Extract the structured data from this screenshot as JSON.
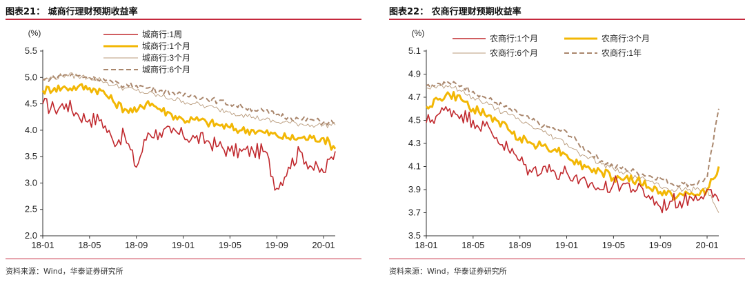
{
  "charts": [
    {
      "title": "图表21：  城商行理财预期收益率",
      "source": "资料来源：Wind，华泰证券研究所",
      "unit": "(%)",
      "ylim": [
        2.0,
        5.5
      ],
      "yticks": [
        "5.5",
        "5.0",
        "4.5",
        "4.0",
        "3.5",
        "3.0",
        "2.5",
        "2.0"
      ],
      "xticks": [
        "18-01",
        "18-05",
        "18-09",
        "19-01",
        "19-05",
        "19-09",
        "20-01"
      ],
      "legend": [
        "城商行:1周",
        "城商行:1个月",
        "城商行:3个月",
        "城商行:6个月"
      ],
      "colors": [
        "#c0282d",
        "#f2b705",
        "#b89a7a",
        "#a9866c"
      ]
    },
    {
      "title": "图表22：  农商行理财预期收益率",
      "source": "资料来源：Wind，华泰证券研究所",
      "unit": "(%)",
      "ylim": [
        3.5,
        5.1
      ],
      "yticks": [
        "5.1",
        "4.9",
        "4.7",
        "4.5",
        "4.3",
        "4.1",
        "3.9",
        "3.7",
        "3.5"
      ],
      "xticks": [
        "18-01",
        "18-05",
        "18-09",
        "19-01",
        "19-05",
        "19-09",
        "20-01"
      ],
      "legend": [
        "农商行:1个月",
        "农商行:3个月",
        "农商行:6个月",
        "农商行:1年"
      ],
      "colors": [
        "#c0282d",
        "#f2b705",
        "#b89a7a",
        "#a9866c"
      ]
    }
  ],
  "chart_data": [
    {
      "type": "line",
      "title": "城商行理财预期收益率",
      "ylabel": "(%)",
      "ylim": [
        2.0,
        5.5
      ],
      "x_range": [
        "2018-01",
        "2020-02"
      ],
      "series": [
        {
          "name": "城商行:1周",
          "x": [
            "2018-01",
            "2018-02",
            "2018-03",
            "2018-04",
            "2018-05",
            "2018-06",
            "2018-07",
            "2018-08",
            "2018-09",
            "2018-10",
            "2018-11",
            "2018-12",
            "2019-01",
            "2019-02",
            "2019-03",
            "2019-04",
            "2019-05",
            "2019-06",
            "2019-07",
            "2019-08",
            "2019-09",
            "2019-10",
            "2019-11",
            "2019-12",
            "2020-01",
            "2020-02"
          ],
          "values": [
            4.5,
            4.4,
            4.5,
            4.3,
            4.2,
            4.2,
            3.8,
            3.9,
            3.3,
            3.95,
            3.95,
            3.95,
            3.9,
            3.85,
            3.8,
            3.7,
            3.6,
            3.6,
            3.6,
            3.6,
            2.9,
            3.3,
            3.6,
            3.3,
            3.2,
            3.6
          ]
        },
        {
          "name": "城商行:1个月",
          "x": [
            "2018-01",
            "2018-02",
            "2018-03",
            "2018-04",
            "2018-05",
            "2018-06",
            "2018-07",
            "2018-08",
            "2018-09",
            "2018-10",
            "2018-11",
            "2018-12",
            "2019-01",
            "2019-02",
            "2019-03",
            "2019-04",
            "2019-05",
            "2019-06",
            "2019-07",
            "2019-08",
            "2019-09",
            "2019-10",
            "2019-11",
            "2019-12",
            "2020-01",
            "2020-02"
          ],
          "values": [
            4.75,
            4.8,
            4.8,
            4.82,
            4.8,
            4.75,
            4.55,
            4.4,
            4.35,
            4.55,
            4.4,
            4.3,
            4.2,
            4.2,
            4.15,
            4.1,
            4.05,
            4.0,
            4.0,
            3.95,
            3.9,
            3.85,
            3.85,
            3.85,
            3.85,
            3.65
          ]
        },
        {
          "name": "城商行:3个月",
          "x": [
            "2018-01",
            "2018-02",
            "2018-03",
            "2018-04",
            "2018-05",
            "2018-06",
            "2018-07",
            "2018-08",
            "2018-09",
            "2018-10",
            "2018-11",
            "2018-12",
            "2019-01",
            "2019-02",
            "2019-03",
            "2019-04",
            "2019-05",
            "2019-06",
            "2019-07",
            "2019-08",
            "2019-09",
            "2019-10",
            "2019-11",
            "2019-12",
            "2020-01",
            "2020-02"
          ],
          "values": [
            4.95,
            5.0,
            5.05,
            5.02,
            5.0,
            4.95,
            4.85,
            4.8,
            4.75,
            4.7,
            4.65,
            4.6,
            4.55,
            4.5,
            4.45,
            4.4,
            4.35,
            4.3,
            4.25,
            4.2,
            4.15,
            4.15,
            4.12,
            4.1,
            4.1,
            4.1
          ]
        },
        {
          "name": "城商行:6个月",
          "x": [
            "2018-01",
            "2018-02",
            "2018-03",
            "2018-04",
            "2018-05",
            "2018-06",
            "2018-07",
            "2018-08",
            "2018-09",
            "2018-10",
            "2018-11",
            "2018-12",
            "2019-01",
            "2019-02",
            "2019-03",
            "2019-04",
            "2019-05",
            "2019-06",
            "2019-07",
            "2019-08",
            "2019-09",
            "2019-10",
            "2019-11",
            "2019-12",
            "2020-01",
            "2020-02"
          ],
          "values": [
            4.95,
            5.0,
            5.05,
            5.03,
            5.0,
            4.97,
            4.9,
            4.85,
            4.85,
            4.8,
            4.75,
            4.72,
            4.65,
            4.65,
            4.6,
            4.55,
            4.5,
            4.45,
            4.4,
            4.35,
            4.3,
            4.25,
            4.2,
            4.2,
            4.15,
            4.15
          ]
        }
      ]
    },
    {
      "type": "line",
      "title": "农商行理财预期收益率",
      "ylabel": "(%)",
      "ylim": [
        3.5,
        5.1
      ],
      "x_range": [
        "2018-01",
        "2020-02"
      ],
      "series": [
        {
          "name": "农商行:1个月",
          "x": [
            "2018-01",
            "2018-02",
            "2018-03",
            "2018-04",
            "2018-05",
            "2018-06",
            "2018-07",
            "2018-08",
            "2018-09",
            "2018-10",
            "2018-11",
            "2018-12",
            "2019-01",
            "2019-02",
            "2019-03",
            "2019-04",
            "2019-05",
            "2019-06",
            "2019-07",
            "2019-08",
            "2019-09",
            "2019-10",
            "2019-11",
            "2019-12",
            "2020-01",
            "2020-02"
          ],
          "values": [
            4.48,
            4.55,
            4.6,
            4.55,
            4.5,
            4.45,
            4.35,
            4.25,
            4.15,
            4.05,
            4.1,
            4.05,
            4.05,
            3.95,
            3.95,
            3.9,
            3.95,
            3.95,
            3.9,
            3.85,
            3.75,
            3.8,
            3.8,
            3.85,
            3.9,
            3.8
          ]
        },
        {
          "name": "农商行:3个月",
          "x": [
            "2018-01",
            "2018-02",
            "2018-03",
            "2018-04",
            "2018-05",
            "2018-06",
            "2018-07",
            "2018-08",
            "2018-09",
            "2018-10",
            "2018-11",
            "2018-12",
            "2019-01",
            "2019-02",
            "2019-03",
            "2019-04",
            "2019-05",
            "2019-06",
            "2019-07",
            "2019-08",
            "2019-09",
            "2019-10",
            "2019-11",
            "2019-12",
            "2020-01",
            "2020-02"
          ],
          "values": [
            4.62,
            4.68,
            4.72,
            4.68,
            4.6,
            4.55,
            4.5,
            4.42,
            4.35,
            4.3,
            4.28,
            4.25,
            4.2,
            4.12,
            4.08,
            4.05,
            4.0,
            4.0,
            3.98,
            3.92,
            3.88,
            3.85,
            3.85,
            3.85,
            3.9,
            4.1
          ]
        },
        {
          "name": "农商行:6个月",
          "x": [
            "2018-01",
            "2018-02",
            "2018-03",
            "2018-04",
            "2018-05",
            "2018-06",
            "2018-07",
            "2018-08",
            "2018-09",
            "2018-10",
            "2018-11",
            "2018-12",
            "2019-01",
            "2019-02",
            "2019-03",
            "2019-04",
            "2019-05",
            "2019-06",
            "2019-07",
            "2019-08",
            "2019-09",
            "2019-10",
            "2019-11",
            "2019-12",
            "2020-01",
            "2020-02"
          ],
          "values": [
            4.78,
            4.8,
            4.8,
            4.75,
            4.7,
            4.65,
            4.6,
            4.55,
            4.5,
            4.45,
            4.4,
            4.35,
            4.3,
            4.22,
            4.18,
            4.12,
            4.08,
            4.05,
            4.0,
            3.98,
            3.92,
            3.9,
            3.9,
            3.9,
            3.9,
            3.7
          ]
        },
        {
          "name": "农商行:1年",
          "x": [
            "2018-01",
            "2018-02",
            "2018-03",
            "2018-04",
            "2018-05",
            "2018-06",
            "2018-07",
            "2018-08",
            "2018-09",
            "2018-10",
            "2018-11",
            "2018-12",
            "2019-01",
            "2019-02",
            "2019-03",
            "2019-04",
            "2019-05",
            "2019-06",
            "2019-07",
            "2019-08",
            "2019-09",
            "2019-10",
            "2019-11",
            "2019-12",
            "2020-01",
            "2020-02"
          ],
          "values": [
            4.8,
            4.82,
            4.82,
            4.8,
            4.75,
            4.7,
            4.65,
            4.6,
            4.55,
            4.5,
            4.45,
            4.42,
            4.4,
            4.3,
            4.22,
            4.15,
            4.1,
            4.08,
            4.05,
            4.02,
            4.0,
            3.95,
            3.95,
            3.95,
            4.0,
            4.6
          ]
        }
      ]
    }
  ]
}
